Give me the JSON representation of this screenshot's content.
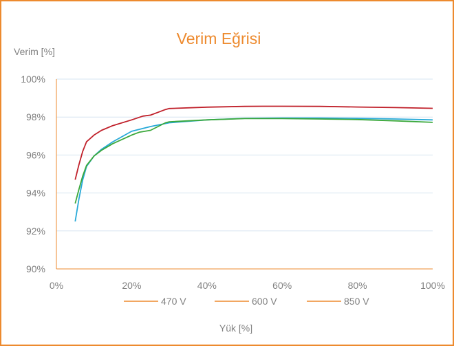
{
  "chart_data": {
    "type": "line",
    "title": "Verim  Eğrisi",
    "ylabel": "Verim [%]",
    "xlabel": "Yük [%]",
    "xlim": [
      0,
      100
    ],
    "ylim": [
      90,
      100
    ],
    "x_ticks": [
      0,
      20,
      40,
      60,
      80,
      100
    ],
    "y_ticks": [
      90,
      92,
      94,
      96,
      98,
      100
    ],
    "x_tick_labels": [
      "0%",
      "20%",
      "40%",
      "60%",
      "80%",
      "100%"
    ],
    "y_tick_labels": [
      "90%",
      "92%",
      "94%",
      "96%",
      "98%",
      "100%"
    ],
    "grid": "horizontal",
    "legend_position": "bottom",
    "legend_entries": [
      "470 V",
      "600 V",
      "850 V"
    ],
    "legend_color": "#ED8A2E",
    "series": [
      {
        "name": "470 V",
        "color": "#27A9D8",
        "x": [
          5,
          6,
          7,
          8,
          10,
          12,
          15,
          20,
          25,
          30,
          40,
          50,
          60,
          70,
          80,
          90,
          100
        ],
        "y": [
          92.5,
          93.7,
          94.7,
          95.4,
          95.95,
          96.3,
          96.7,
          97.25,
          97.5,
          97.7,
          97.85,
          97.93,
          97.95,
          97.95,
          97.93,
          97.9,
          97.85
        ]
      },
      {
        "name": "600 V",
        "color": "#3BA83B",
        "x": [
          5,
          6,
          7,
          8,
          10,
          12,
          15,
          20,
          22,
          25,
          27,
          29,
          30,
          40,
          50,
          60,
          70,
          80,
          90,
          100
        ],
        "y": [
          93.45,
          94.2,
          94.9,
          95.45,
          95.95,
          96.25,
          96.6,
          97.05,
          97.2,
          97.3,
          97.5,
          97.7,
          97.75,
          97.85,
          97.92,
          97.92,
          97.9,
          97.87,
          97.8,
          97.72
        ]
      },
      {
        "name": "850 V",
        "color": "#C0202A",
        "x": [
          5,
          6,
          7,
          8,
          10,
          12,
          15,
          20,
          23,
          25,
          27,
          29,
          30,
          40,
          50,
          55,
          60,
          70,
          80,
          90,
          100
        ],
        "y": [
          94.7,
          95.5,
          96.2,
          96.7,
          97.05,
          97.3,
          97.55,
          97.85,
          98.05,
          98.1,
          98.25,
          98.4,
          98.45,
          98.52,
          98.56,
          98.57,
          98.57,
          98.56,
          98.53,
          98.5,
          98.46
        ]
      }
    ]
  }
}
